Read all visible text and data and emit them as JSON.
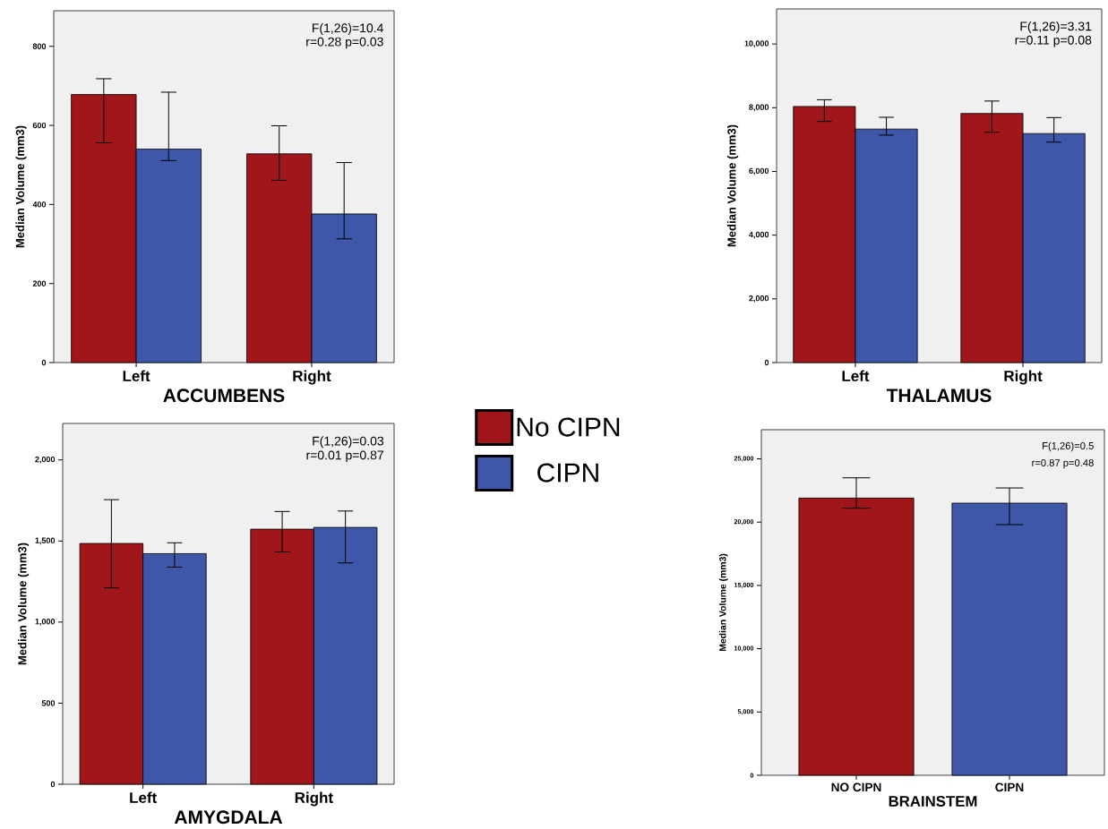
{
  "chart_data": [
    {
      "type": "bar",
      "xlabel": "ACCUMBENS",
      "ylabel": "Median Volume (mm3)",
      "categories": [
        "Left",
        "Right"
      ],
      "ylim": [
        0,
        890
      ],
      "yticks": [
        0,
        200,
        400,
        600,
        800
      ],
      "legend": "right",
      "annotations": [
        "F(1,26)=10.4",
        "r=0.28 p=0.03"
      ],
      "series": [
        {
          "name": "No CIPN",
          "color": "#a0161b",
          "values": [
            678,
            528
          ],
          "errors": [
            [
              556,
              718
            ],
            [
              461,
              599
            ]
          ]
        },
        {
          "name": "CIPN",
          "color": "#3e57a8",
          "values": [
            540,
            376
          ],
          "errors": [
            [
              511,
              684
            ],
            [
              313,
              506
            ]
          ]
        }
      ]
    },
    {
      "type": "bar",
      "xlabel": "THALAMUS",
      "ylabel": "Median Volume (mm3)",
      "categories": [
        "Left",
        "Right"
      ],
      "ylim": [
        0,
        11100
      ],
      "yticks": [
        0,
        {
          "value": 2000,
          "label": "2,000"
        },
        {
          "value": 4000,
          "label": "4,000"
        },
        {
          "value": 6000,
          "label": "6,000"
        },
        {
          "value": 8000,
          "label": "8,000"
        },
        {
          "value": 10000,
          "label": "10,000"
        }
      ],
      "annotations": [
        "F(1,26)=3.31",
        "r=0.11 p=0.08"
      ],
      "series": [
        {
          "color": "#a0161b",
          "values": [
            8040,
            7820
          ],
          "errors": [
            [
              7570,
              8250
            ],
            [
              7230,
              8210
            ]
          ]
        },
        {
          "color": "#3e57a8",
          "values": [
            7330,
            7190
          ],
          "errors": [
            [
              7140,
              7700
            ],
            [
              6920,
              7690
            ]
          ]
        }
      ]
    },
    {
      "type": "bar",
      "xlabel": "AMYGDALA",
      "ylabel": "Median Volume (mm3)",
      "categories": [
        "Left",
        "Right"
      ],
      "ylim": [
        0,
        2225
      ],
      "yticks": [
        0,
        500,
        {
          "value": 1000,
          "label": "1,000"
        },
        {
          "value": 1500,
          "label": "1,500"
        },
        {
          "value": 2000,
          "label": "2,000"
        }
      ],
      "annotations": [
        "F(1,26)=0.03",
        "r=0.01 p=0.87"
      ],
      "series": [
        {
          "color": "#a0161b",
          "values": [
            1485,
            1573
          ],
          "errors": [
            [
              1211,
              1755
            ],
            [
              1433,
              1682
            ]
          ]
        },
        {
          "color": "#3e57a8",
          "values": [
            1422,
            1584
          ],
          "errors": [
            [
              1339,
              1489
            ],
            [
              1365,
              1685
            ]
          ]
        }
      ]
    },
    {
      "type": "bar",
      "xlabel": "BRAINSTEM",
      "ylabel": "Median Volume (mm3)",
      "categories": [
        "NO CIPN",
        "CIPN"
      ],
      "ylim": [
        0,
        27300
      ],
      "yticks": [
        0,
        {
          "value": 5000,
          "label": "5,000"
        },
        {
          "value": 10000,
          "label": "10,000"
        },
        {
          "value": 15000,
          "label": "15,000"
        },
        {
          "value": 20000,
          "label": "20,000"
        },
        {
          "value": 25000,
          "label": "25,000"
        }
      ],
      "annotations": [
        "F(1,26)=0.5",
        "r=0.87 p=0.48"
      ],
      "values": [
        21900,
        21500
      ],
      "colors": [
        "#a0161b",
        "#3e57a8"
      ],
      "errors": [
        [
          21100,
          23500
        ],
        [
          19800,
          22700
        ]
      ]
    }
  ]
}
